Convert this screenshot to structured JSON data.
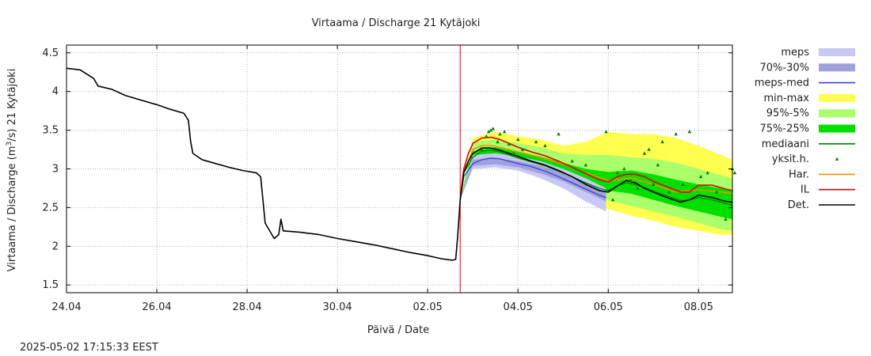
{
  "chart_data": {
    "type": "line",
    "title": "Virtaama / Discharge  21 Kytäjoki",
    "xlabel": "Päivä / Date",
    "ylabel_prefix": "Virtaama / Discharge (m",
    "ylabel_sup": "3",
    "ylabel_suffix": "/s)  21 Kytäjoki",
    "timestamp": "2025-05-02 17:15:33 EEST",
    "x_unit": "days since 24.04 00:00 (axis shows dd.mm)",
    "xlim": [
      0,
      14.75
    ],
    "ylim": [
      1.4,
      4.6
    ],
    "grid": true,
    "legend_position": "right",
    "x_ticks": [
      {
        "x": 0,
        "label": "24.04"
      },
      {
        "x": 2,
        "label": "26.04"
      },
      {
        "x": 4,
        "label": "28.04"
      },
      {
        "x": 6,
        "label": "30.04"
      },
      {
        "x": 8,
        "label": "02.05"
      },
      {
        "x": 10,
        "label": "04.05"
      },
      {
        "x": 12,
        "label": "06.05"
      },
      {
        "x": 14,
        "label": "08.05"
      }
    ],
    "y_ticks": [
      {
        "y": 1.5,
        "label": "1.5"
      },
      {
        "y": 2,
        "label": "2"
      },
      {
        "y": 2.5,
        "label": "2.5"
      },
      {
        "y": 3,
        "label": "3"
      },
      {
        "y": 3.5,
        "label": "3.5"
      },
      {
        "y": 4,
        "label": "4"
      },
      {
        "y": 4.5,
        "label": "4.5"
      }
    ],
    "forecast_start": 8.72,
    "colors": {
      "meps": "#c8c8f5",
      "meps_70_30": "#a0a0dc",
      "meps_med": "#3c3cdc",
      "minmax": "#ffff50",
      "p95_5": "#aaff6a",
      "p75_25": "#00e000",
      "median": "#008000",
      "yksit": "#008000",
      "har": "#ff8c00",
      "il": "#e00000",
      "det": "#000000",
      "now_line": "#e00000"
    },
    "legend": [
      {
        "label": "meps",
        "kind": "band",
        "color": "#c8c8f5"
      },
      {
        "label": "70%-30%",
        "kind": "band",
        "color": "#a0a0dc"
      },
      {
        "label": "meps-med",
        "kind": "line",
        "color": "#3c3cdc"
      },
      {
        "label": "min-max",
        "kind": "band",
        "color": "#ffff50"
      },
      {
        "label": "95%-5%",
        "kind": "band",
        "color": "#aaff6a"
      },
      {
        "label": "75%-25%",
        "kind": "band",
        "color": "#00e000"
      },
      {
        "label": "mediaani",
        "kind": "line",
        "color": "#008000"
      },
      {
        "label": "yksit.h.",
        "kind": "marker",
        "color": "#008000"
      },
      {
        "label": "Har.",
        "kind": "line",
        "color": "#ff8c00"
      },
      {
        "label": "IL",
        "kind": "line",
        "color": "#e00000"
      },
      {
        "label": "Det.",
        "kind": "line",
        "color": "#000000"
      }
    ],
    "series": [
      {
        "name": "Det.",
        "kind": "line",
        "x": [
          0,
          0.3,
          0.6,
          0.7,
          1.0,
          1.3,
          1.7,
          2.0,
          2.3,
          2.6,
          2.7,
          2.75,
          2.8,
          3.0,
          3.3,
          3.6,
          3.9,
          4.2,
          4.3,
          4.4,
          4.6,
          4.7,
          4.75,
          4.8,
          5.2,
          5.6,
          6.0,
          6.4,
          6.8,
          7.2,
          7.6,
          8.0,
          8.3,
          8.55,
          8.62,
          8.66,
          8.72,
          8.8,
          8.9,
          9.0,
          9.2,
          9.4,
          9.6,
          9.8,
          10.0,
          10.3,
          10.6,
          10.9,
          11.2,
          11.5,
          11.8,
          12.0,
          12.2,
          12.4,
          12.6,
          12.8,
          13.0,
          13.3,
          13.6,
          13.8,
          14.0,
          14.3,
          14.6,
          14.75
        ],
        "y": [
          4.3,
          4.28,
          4.17,
          4.07,
          4.03,
          3.95,
          3.88,
          3.83,
          3.77,
          3.72,
          3.63,
          3.35,
          3.2,
          3.12,
          3.07,
          3.02,
          2.98,
          2.95,
          2.9,
          2.3,
          2.1,
          2.15,
          2.35,
          2.2,
          2.18,
          2.15,
          2.1,
          2.06,
          2.02,
          1.97,
          1.92,
          1.88,
          1.84,
          1.82,
          1.83,
          2.1,
          2.6,
          2.95,
          3.1,
          3.2,
          3.27,
          3.27,
          3.24,
          3.2,
          3.16,
          3.1,
          3.05,
          2.98,
          2.9,
          2.8,
          2.72,
          2.7,
          2.78,
          2.85,
          2.82,
          2.75,
          2.7,
          2.63,
          2.57,
          2.6,
          2.66,
          2.63,
          2.58,
          2.57
        ]
      },
      {
        "name": "IL",
        "kind": "line",
        "x": [
          8.72,
          8.8,
          8.9,
          9.0,
          9.2,
          9.4,
          9.6,
          9.8,
          10.0,
          10.3,
          10.6,
          10.9,
          11.2,
          11.5,
          11.8,
          12.0,
          12.2,
          12.4,
          12.6,
          12.8,
          13.0,
          13.3,
          13.6,
          13.8,
          14.0,
          14.3,
          14.6,
          14.75
        ],
        "y": [
          2.6,
          3.0,
          3.2,
          3.33,
          3.4,
          3.41,
          3.38,
          3.33,
          3.28,
          3.22,
          3.17,
          3.1,
          3.02,
          2.94,
          2.86,
          2.83,
          2.9,
          2.93,
          2.93,
          2.9,
          2.84,
          2.77,
          2.7,
          2.7,
          2.79,
          2.79,
          2.74,
          2.72
        ]
      },
      {
        "name": "Har.",
        "kind": "line",
        "x": [
          8.72,
          8.8,
          9.0,
          9.2,
          9.4,
          9.6,
          10.0,
          10.5,
          11.0,
          11.5,
          12.0,
          12.5,
          13.0,
          13.5,
          14.0,
          14.5,
          14.75
        ],
        "y": [
          2.6,
          2.95,
          3.25,
          3.3,
          3.3,
          3.28,
          3.22,
          3.15,
          3.06,
          2.95,
          2.85,
          2.88,
          2.8,
          2.7,
          2.73,
          2.7,
          2.68
        ]
      },
      {
        "name": "meps-med",
        "kind": "line",
        "x": [
          8.72,
          8.8,
          9.0,
          9.2,
          9.4,
          9.6,
          9.8,
          10.0,
          10.3,
          10.6,
          10.9,
          11.2,
          11.5,
          11.8,
          11.95
        ],
        "y": [
          2.6,
          2.9,
          3.07,
          3.12,
          3.14,
          3.13,
          3.1,
          3.07,
          3.03,
          2.97,
          2.9,
          2.82,
          2.74,
          2.66,
          2.63
        ]
      },
      {
        "name": "mediaani",
        "kind": "line",
        "x": [
          8.72,
          8.8,
          9.0,
          9.2,
          9.4,
          9.6,
          9.8,
          10.0,
          10.3,
          10.6,
          10.9,
          11.2,
          11.5,
          11.8,
          12.0,
          12.2,
          12.4,
          12.6,
          12.8,
          13.0,
          13.3,
          13.6,
          13.8,
          14.0,
          14.3,
          14.6,
          14.75
        ],
        "y": [
          2.6,
          2.95,
          3.15,
          3.23,
          3.24,
          3.22,
          3.18,
          3.14,
          3.09,
          3.04,
          2.97,
          2.9,
          2.82,
          2.75,
          2.72,
          2.78,
          2.82,
          2.8,
          2.76,
          2.71,
          2.65,
          2.59,
          2.6,
          2.63,
          2.6,
          2.55,
          2.53
        ]
      },
      {
        "name": "min-max",
        "kind": "band",
        "x": [
          8.72,
          9.0,
          9.5,
          10.0,
          10.5,
          11.0,
          11.5,
          12.0,
          12.5,
          13.0,
          13.5,
          14.0,
          14.5,
          14.75
        ],
        "upper": [
          2.6,
          3.4,
          3.48,
          3.42,
          3.38,
          3.3,
          3.35,
          3.48,
          3.45,
          3.45,
          3.4,
          3.3,
          3.18,
          3.12
        ],
        "lower": [
          2.6,
          3.02,
          3.05,
          2.98,
          2.88,
          2.75,
          2.6,
          2.48,
          2.4,
          2.33,
          2.25,
          2.2,
          2.15,
          2.15
        ]
      },
      {
        "name": "95%-5%",
        "kind": "band",
        "x": [
          8.72,
          9.0,
          9.5,
          10.0,
          10.5,
          11.0,
          11.5,
          12.0,
          12.5,
          13.0,
          13.5,
          14.0,
          14.5,
          14.75
        ],
        "upper": [
          2.6,
          3.35,
          3.38,
          3.33,
          3.28,
          3.2,
          3.18,
          3.18,
          3.15,
          3.13,
          3.08,
          3.0,
          2.92,
          2.88
        ],
        "lower": [
          2.6,
          3.07,
          3.09,
          3.02,
          2.93,
          2.82,
          2.7,
          2.6,
          2.52,
          2.45,
          2.38,
          2.3,
          2.22,
          2.2
        ]
      },
      {
        "name": "75%-25%",
        "kind": "band",
        "x": [
          8.72,
          9.0,
          9.5,
          10.0,
          10.5,
          11.0,
          11.5,
          12.0,
          12.5,
          13.0,
          13.5,
          14.0,
          14.5,
          14.75
        ],
        "upper": [
          2.6,
          3.23,
          3.28,
          3.22,
          3.16,
          3.08,
          3.0,
          2.96,
          2.98,
          2.93,
          2.86,
          2.8,
          2.75,
          2.72
        ],
        "lower": [
          2.6,
          3.13,
          3.16,
          3.1,
          3.02,
          2.92,
          2.8,
          2.72,
          2.68,
          2.6,
          2.52,
          2.45,
          2.38,
          2.35
        ]
      },
      {
        "name": "meps",
        "kind": "band",
        "x": [
          8.72,
          9.0,
          9.5,
          10.0,
          10.5,
          11.0,
          11.5,
          11.95
        ],
        "upper": [
          2.6,
          3.18,
          3.2,
          3.16,
          3.1,
          3.0,
          2.88,
          2.75
        ],
        "lower": [
          2.6,
          3.0,
          3.02,
          2.98,
          2.88,
          2.75,
          2.58,
          2.45
        ]
      },
      {
        "name": "70%-30%",
        "kind": "band",
        "x": [
          8.72,
          9.0,
          9.5,
          10.0,
          10.5,
          11.0,
          11.5,
          11.95
        ],
        "upper": [
          2.6,
          3.12,
          3.14,
          3.1,
          3.04,
          2.95,
          2.82,
          2.7
        ],
        "lower": [
          2.6,
          3.04,
          3.06,
          3.02,
          2.94,
          2.84,
          2.7,
          2.58
        ]
      },
      {
        "name": "yksit.h.",
        "kind": "scatter",
        "x": [
          9.2,
          9.3,
          9.35,
          9.4,
          9.45,
          9.55,
          9.6,
          9.7,
          9.8,
          9.9,
          10.0,
          10.1,
          10.4,
          10.6,
          10.9,
          11.2,
          11.5,
          11.95,
          12.1,
          12.2,
          12.35,
          12.5,
          12.65,
          12.8,
          12.9,
          13.0,
          13.1,
          13.2,
          13.35,
          13.5,
          13.65,
          13.8,
          14.05,
          14.2,
          14.4,
          14.6,
          14.75,
          14.8
        ],
        "y": [
          3.25,
          3.42,
          3.48,
          3.5,
          3.52,
          3.35,
          3.45,
          3.48,
          3.32,
          3.2,
          3.38,
          3.25,
          3.35,
          3.3,
          3.45,
          3.1,
          3.05,
          3.48,
          2.6,
          2.95,
          3.0,
          2.85,
          2.75,
          3.2,
          3.25,
          2.8,
          3.05,
          3.35,
          2.7,
          3.45,
          2.8,
          3.48,
          2.9,
          2.95,
          2.7,
          2.35,
          3.0,
          2.95
        ]
      }
    ]
  }
}
